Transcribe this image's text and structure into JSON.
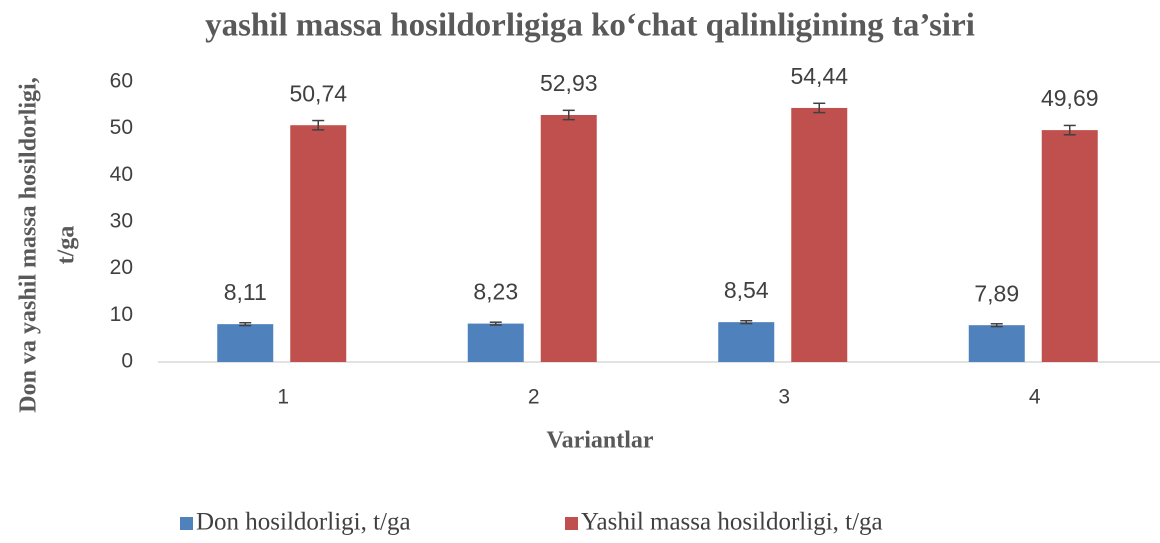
{
  "chart_data": {
    "type": "bar",
    "title": "yashil massa hosildorligiga ko‘chat qalinligining ta’siri",
    "xlabel": "Variantlar",
    "ylabel": [
      "Don va yashil massa hosildorligi,",
      "t/ga"
    ],
    "categories": [
      "1",
      "2",
      "3",
      "4"
    ],
    "series": [
      {
        "name": "Don hosildorligi, t/ga",
        "color": "#4f81bd",
        "values": [
          8.11,
          8.23,
          8.54,
          7.89
        ],
        "value_labels": [
          "8,11",
          "8,23",
          "8,54",
          "7,89"
        ],
        "errors": [
          0.3,
          0.3,
          0.3,
          0.3
        ]
      },
      {
        "name": "Yashil massa hosildorligi, t/ga",
        "color": "#c0504d",
        "values": [
          50.74,
          52.93,
          54.44,
          49.69
        ],
        "value_labels": [
          "50,74",
          "52,93",
          "54,44",
          "49,69"
        ],
        "errors": [
          1,
          1,
          1,
          1
        ]
      }
    ],
    "ylim": [
      0,
      60
    ],
    "yticks": [
      0,
      10,
      20,
      30,
      40,
      50,
      60
    ],
    "grid": false,
    "legend": "bottom"
  }
}
